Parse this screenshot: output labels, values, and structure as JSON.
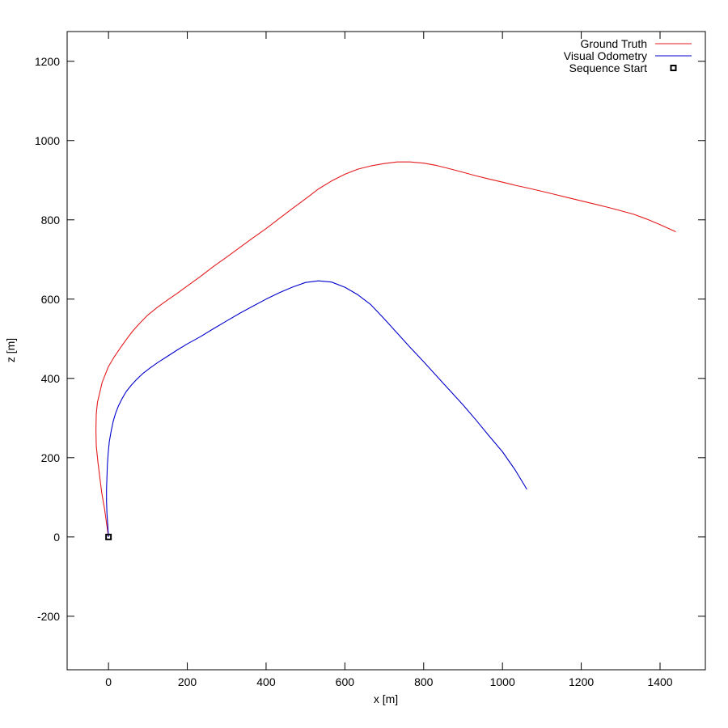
{
  "chart_data": {
    "type": "line",
    "xlabel": "x [m]",
    "ylabel": "z [m]",
    "xlim": [
      -105,
      1515
    ],
    "ylim": [
      -335,
      1275
    ],
    "xticks": [
      0,
      200,
      400,
      600,
      800,
      1000,
      1200,
      1400
    ],
    "yticks": [
      -200,
      0,
      200,
      400,
      600,
      800,
      1000,
      1200
    ],
    "grid": false,
    "legend_position": "top-right",
    "series": [
      {
        "name": "Ground Truth",
        "color": "#e41a1c",
        "x": [
          0,
          -5,
          -10,
          -17,
          -22,
          -27,
          -31,
          -32,
          -31,
          -28,
          -22,
          -16,
          -8,
          0,
          15,
          30,
          45,
          62,
          80,
          100,
          125,
          150,
          175,
          200,
          233,
          266,
          300,
          333,
          366,
          400,
          433,
          466,
          500,
          533,
          566,
          600,
          633,
          666,
          700,
          733,
          766,
          800,
          833,
          866,
          900,
          933,
          966,
          1000,
          1033,
          1066,
          1100,
          1133,
          1166,
          1200,
          1233,
          1266,
          1300,
          1333,
          1366,
          1400,
          1440
        ],
        "y": [
          0,
          35,
          70,
          110,
          150,
          190,
          230,
          270,
          310,
          340,
          365,
          390,
          410,
          430,
          455,
          477,
          498,
          520,
          540,
          560,
          580,
          598,
          615,
          633,
          657,
          682,
          706,
          730,
          754,
          778,
          803,
          828,
          853,
          878,
          898,
          915,
          928,
          936,
          942,
          946,
          946,
          943,
          937,
          929,
          920,
          911,
          903,
          895,
          887,
          880,
          872,
          864,
          856,
          848,
          840,
          832,
          823,
          814,
          802,
          788,
          770
        ]
      },
      {
        "name": "Visual Odometry",
        "color": "#0000cc",
        "x": [
          0,
          -2,
          -4,
          -5,
          -5,
          -4,
          -3,
          -1,
          2,
          7,
          12,
          18,
          25,
          35,
          45,
          58,
          72,
          88,
          105,
          125,
          150,
          175,
          200,
          233,
          266,
          300,
          333,
          366,
          400,
          433,
          466,
          500,
          533,
          566,
          600,
          633,
          666,
          700,
          733,
          766,
          800,
          833,
          866,
          900,
          933,
          966,
          1000,
          1033,
          1062
        ],
        "y": [
          0,
          30,
          60,
          90,
          120,
          150,
          180,
          210,
          240,
          268,
          292,
          312,
          330,
          350,
          367,
          383,
          398,
          413,
          426,
          440,
          456,
          472,
          487,
          505,
          525,
          545,
          564,
          582,
          600,
          616,
          630,
          642,
          646,
          643,
          630,
          611,
          586,
          550,
          514,
          478,
          442,
          406,
          370,
          333,
          295,
          255,
          215,
          168,
          120
        ]
      }
    ],
    "markers": [
      {
        "name": "Sequence Start",
        "x": 0,
        "y": 0,
        "symbol": "open-square",
        "color": "#000000"
      }
    ]
  }
}
